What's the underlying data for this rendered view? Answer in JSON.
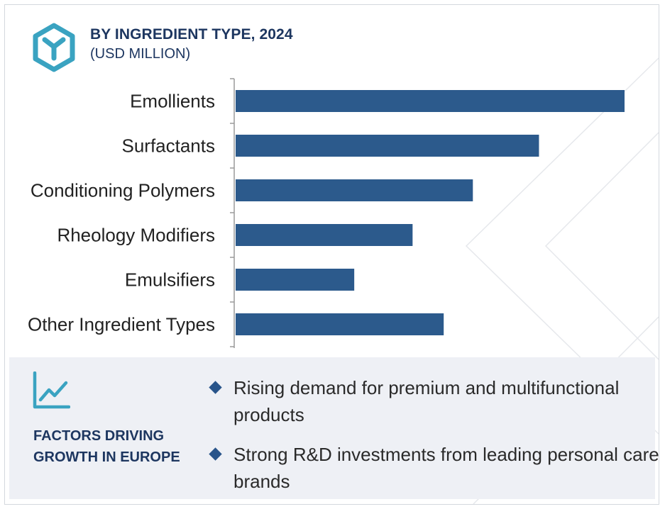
{
  "header": {
    "title": "BY INGREDIENT TYPE, 2024",
    "subtitle": "(USD MILLION)",
    "icon": "cube-y-icon"
  },
  "chart_data": {
    "type": "bar",
    "orientation": "horizontal",
    "categories": [
      "Emollients",
      "Surfactants",
      "Conditioning Polymers",
      "Rheology Modifiers",
      "Emulsifiers",
      "Other Ingredient Types"
    ],
    "values": [
      100,
      78,
      61,
      45.5,
      30.5,
      53.5
    ],
    "value_axis_range": [
      0,
      100
    ],
    "bar_color": "#2c5a8c",
    "grid": false,
    "axis_labels_shown": false
  },
  "factors": {
    "icon": "line-chart-icon",
    "title": "FACTORS DRIVING GROWTH IN EUROPE",
    "items": [
      "Rising demand for premium and multifunctional products",
      "Strong R&D investments from leading personal care brands"
    ]
  },
  "colors": {
    "title": "#1d3660",
    "bar": "#2c5a8c",
    "icon": "#3aa3c1",
    "footer_bg": "#eef0f5",
    "bullet": "#28548a"
  }
}
